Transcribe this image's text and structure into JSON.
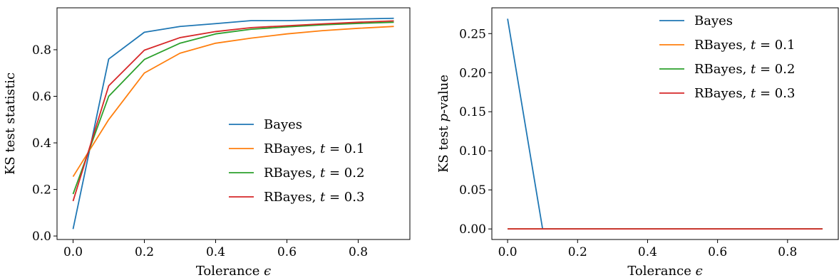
{
  "chart_data": [
    {
      "type": "line",
      "xlabel": "Tolerance ϵ",
      "ylabel": "KS test statistic",
      "xlim": [
        -0.045,
        0.945
      ],
      "ylim": [
        -0.015,
        0.98
      ],
      "xticks": [
        0.0,
        0.2,
        0.4,
        0.6,
        0.8
      ],
      "xtick_labels": [
        "0.0",
        "0.2",
        "0.4",
        "0.6",
        "0.8"
      ],
      "yticks": [
        0.0,
        0.2,
        0.4,
        0.6,
        0.8
      ],
      "ytick_labels": [
        "0.0",
        "0.2",
        "0.4",
        "0.6",
        "0.8"
      ],
      "legend_position": "lower-right",
      "x": [
        0.0,
        0.1,
        0.2,
        0.3,
        0.4,
        0.5,
        0.6,
        0.7,
        0.8,
        0.9
      ],
      "series": [
        {
          "name": "Bayes",
          "color": "#1f77b4",
          "values": [
            0.03,
            0.76,
            0.875,
            0.9,
            0.912,
            0.925,
            0.925,
            0.928,
            0.932,
            0.935
          ]
        },
        {
          "name": "RBayes, t = 0.1",
          "color": "#ff7f0e",
          "values": [
            0.255,
            0.5,
            0.7,
            0.785,
            0.828,
            0.85,
            0.868,
            0.882,
            0.892,
            0.9
          ]
        },
        {
          "name": "RBayes, t = 0.2",
          "color": "#2ca02c",
          "values": [
            0.18,
            0.6,
            0.758,
            0.828,
            0.868,
            0.888,
            0.898,
            0.907,
            0.913,
            0.918
          ]
        },
        {
          "name": "RBayes, t = 0.3",
          "color": "#d62728",
          "values": [
            0.15,
            0.645,
            0.798,
            0.852,
            0.878,
            0.895,
            0.903,
            0.911,
            0.918,
            0.924
          ]
        }
      ]
    },
    {
      "type": "line",
      "xlabel": "Tolerance ϵ",
      "ylabel": "KS test p-value",
      "xlim": [
        -0.045,
        0.945
      ],
      "ylim": [
        -0.0135,
        0.283
      ],
      "xticks": [
        0.0,
        0.2,
        0.4,
        0.6,
        0.8
      ],
      "xtick_labels": [
        "0.0",
        "0.2",
        "0.4",
        "0.6",
        "0.8"
      ],
      "yticks": [
        0.0,
        0.05,
        0.1,
        0.15,
        0.2,
        0.25
      ],
      "ytick_labels": [
        "0.00",
        "0.05",
        "0.10",
        "0.15",
        "0.20",
        "0.25"
      ],
      "legend_position": "upper-right",
      "x": [
        0.0,
        0.1,
        0.2,
        0.3,
        0.4,
        0.5,
        0.6,
        0.7,
        0.8,
        0.9
      ],
      "series": [
        {
          "name": "Bayes",
          "color": "#1f77b4",
          "values": [
            0.269,
            0.0,
            0.0,
            0.0,
            0.0,
            0.0,
            0.0,
            0.0,
            0.0,
            0.0
          ]
        },
        {
          "name": "RBayes, t = 0.1",
          "color": "#ff7f0e",
          "values": [
            0.0,
            0.0,
            0.0,
            0.0,
            0.0,
            0.0,
            0.0,
            0.0,
            0.0,
            0.0
          ]
        },
        {
          "name": "RBayes, t = 0.2",
          "color": "#2ca02c",
          "values": [
            0.0,
            0.0,
            0.0,
            0.0,
            0.0,
            0.0,
            0.0,
            0.0,
            0.0,
            0.0
          ]
        },
        {
          "name": "RBayes, t = 0.3",
          "color": "#d62728",
          "values": [
            0.0,
            0.0,
            0.0,
            0.0,
            0.0,
            0.0,
            0.0,
            0.0,
            0.0,
            0.0
          ]
        }
      ]
    }
  ]
}
